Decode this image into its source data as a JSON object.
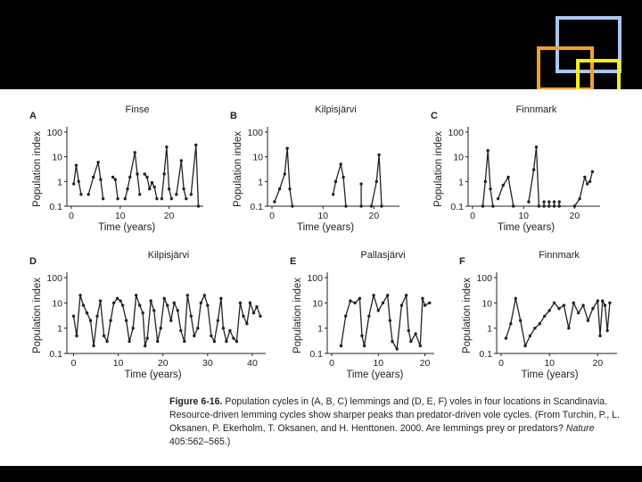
{
  "colors": {
    "slide_bg": "#ffffff",
    "line": "#222222",
    "outer_bg": "#000000"
  },
  "caption": {
    "figure_label": "Figure 6-16.",
    "text": "Population cycles in (A, B, C) lemmings and (D, E, F) voles in four locations in Scandinavia. Resource-driven lemming cycles show sharper peaks than predator-driven vole cycles. (From Turchin, P., L. Oksanen, P. Ekerholm, T. Oksanen, and H. Henttonen. 2000. Are lemmings prey or predators?",
    "journal": "Nature",
    "citation_end": "405:562–565.)"
  },
  "chart_data": [
    {
      "id": "A",
      "type": "line",
      "panel_label": "A",
      "title": "Finse",
      "xlabel": "Time (years)",
      "ylabel": "Population index",
      "yscale": "log",
      "ylim": [
        0.1,
        100
      ],
      "xlim": [
        0,
        27
      ],
      "yticks": [
        "0.1",
        "1",
        "10",
        "100"
      ],
      "xticks": [
        "0",
        "10",
        "20"
      ],
      "segments": [
        [
          [
            0.5,
            0.8
          ],
          [
            1,
            4.5
          ],
          [
            1.5,
            1
          ],
          [
            2,
            0.3
          ]
        ],
        [
          [
            3.5,
            0.3
          ],
          [
            4.5,
            1.5
          ],
          [
            5.5,
            6
          ],
          [
            6,
            1.2
          ],
          [
            6.5,
            0.2
          ]
        ],
        [
          [
            8.5,
            1.5
          ],
          [
            9,
            1.2
          ],
          [
            9.5,
            0.2
          ]
        ],
        [
          [
            11,
            0.2
          ],
          [
            11.5,
            0.5
          ],
          [
            12,
            1.5
          ],
          [
            13,
            15
          ],
          [
            13.5,
            2
          ],
          [
            14,
            0.3
          ]
        ],
        [
          [
            15,
            2
          ],
          [
            15.5,
            1.5
          ],
          [
            16,
            0.5
          ],
          [
            16.5,
            0.9
          ],
          [
            17,
            0.6
          ],
          [
            17.5,
            0.2
          ]
        ],
        [
          [
            18.5,
            0.2
          ],
          [
            19,
            2
          ],
          [
            19.5,
            25
          ],
          [
            20,
            0.5
          ],
          [
            20.5,
            0.2
          ]
        ],
        [
          [
            21.5,
            0.3
          ],
          [
            22.5,
            7
          ],
          [
            23,
            0.5
          ],
          [
            23.5,
            0.2
          ]
        ],
        [
          [
            24.5,
            0.3
          ],
          [
            25.5,
            30
          ],
          [
            26,
            0.1
          ]
        ]
      ]
    },
    {
      "id": "B",
      "type": "line",
      "panel_label": "B",
      "title": "Kilpisjärvi",
      "xlabel": "Time (years)",
      "ylabel": "Population index",
      "yscale": "log",
      "ylim": [
        0.1,
        100
      ],
      "xlim": [
        0,
        25
      ],
      "yticks": [
        "0.1",
        "1",
        "10",
        "100"
      ],
      "xticks": [
        "0",
        "10",
        "20"
      ],
      "segments": [
        [
          [
            0.5,
            0.15
          ],
          [
            1.5,
            0.5
          ],
          [
            2.5,
            2
          ],
          [
            3,
            22
          ],
          [
            3.5,
            0.5
          ],
          [
            4,
            0.1
          ]
        ],
        [
          [
            12,
            0.3
          ],
          [
            12.5,
            1
          ],
          [
            13.5,
            5
          ],
          [
            14,
            1.5
          ],
          [
            14.5,
            0.1
          ]
        ],
        [
          [
            17.5,
            0.1
          ],
          [
            17.5,
            0.8
          ]
        ],
        [
          [
            19.5,
            0.1
          ],
          [
            20.5,
            1
          ],
          [
            21,
            12
          ],
          [
            21.5,
            0.1
          ]
        ]
      ]
    },
    {
      "id": "C",
      "type": "line",
      "panel_label": "C",
      "title": "Finnmark",
      "xlabel": "Time (years)",
      "ylabel": "Population index",
      "yscale": "log",
      "ylim": [
        0.1,
        100
      ],
      "xlim": [
        0,
        25
      ],
      "yticks": [
        "0.1",
        "1",
        "10",
        "100"
      ],
      "xticks": [
        "0",
        "10",
        "20"
      ],
      "segments": [
        [
          [
            2,
            0.1
          ],
          [
            2.5,
            1
          ],
          [
            3,
            18
          ],
          [
            3.5,
            0.5
          ],
          [
            4,
            0.1
          ]
        ],
        [
          [
            5,
            0.2
          ],
          [
            6,
            0.7
          ],
          [
            7,
            1.5
          ],
          [
            8,
            0.1
          ]
        ],
        [
          [
            11,
            0.15
          ],
          [
            12,
            3
          ],
          [
            12.5,
            25
          ],
          [
            13,
            0.1
          ]
        ],
        [
          [
            14,
            0.1
          ],
          [
            14,
            0.15
          ]
        ],
        [
          [
            15,
            0.1
          ],
          [
            15,
            0.15
          ]
        ],
        [
          [
            16,
            0.1
          ],
          [
            16,
            0.15
          ]
        ],
        [
          [
            17,
            0.1
          ],
          [
            17,
            0.15
          ]
        ],
        [
          [
            20,
            0.1
          ],
          [
            21,
            0.2
          ],
          [
            22,
            1.5
          ],
          [
            22.5,
            0.8
          ],
          [
            23,
            1
          ],
          [
            23.5,
            2.5
          ]
        ]
      ]
    },
    {
      "id": "D",
      "type": "line",
      "panel_label": "D",
      "title": "Kilpisjärvi",
      "xlabel": "Time (years)",
      "ylabel": "Population index",
      "yscale": "log",
      "ylim": [
        0.1,
        100
      ],
      "xlim": [
        -0.5,
        43
      ],
      "yticks": [
        "0.1",
        "1",
        "10",
        "100"
      ],
      "xticks": [
        "0",
        "10",
        "20",
        "30",
        "40"
      ],
      "segments": [
        [
          [
            0,
            3
          ],
          [
            0.7,
            0.5
          ],
          [
            1.5,
            20
          ],
          [
            2.2,
            8
          ],
          [
            3,
            4
          ],
          [
            3.8,
            2
          ],
          [
            4.5,
            0.2
          ],
          [
            5.3,
            3
          ],
          [
            6,
            12
          ],
          [
            6.8,
            0.5
          ],
          [
            7.5,
            0.3
          ],
          [
            8.3,
            2
          ],
          [
            9,
            10
          ],
          [
            9.8,
            15
          ],
          [
            10.5,
            12
          ],
          [
            11,
            8
          ],
          [
            11.8,
            2
          ],
          [
            12.5,
            0.3
          ],
          [
            13.3,
            1
          ],
          [
            14,
            20
          ],
          [
            14.8,
            8
          ],
          [
            15.5,
            4
          ],
          [
            16,
            0.2
          ],
          [
            16.5,
            0.4
          ],
          [
            17.3,
            12
          ],
          [
            18,
            5
          ],
          [
            18.8,
            0.3
          ],
          [
            19.5,
            1
          ],
          [
            20.3,
            15
          ],
          [
            21,
            8
          ],
          [
            21.8,
            2
          ],
          [
            22.5,
            10
          ],
          [
            23.3,
            5
          ],
          [
            24,
            0.8
          ],
          [
            24.8,
            0.3
          ],
          [
            25.5,
            20
          ],
          [
            26.3,
            3
          ],
          [
            27,
            0.5
          ],
          [
            27.8,
            1
          ],
          [
            28.5,
            10
          ],
          [
            29.3,
            20
          ],
          [
            30,
            8
          ],
          [
            30.8,
            0.5
          ],
          [
            31.5,
            0.3
          ],
          [
            32.3,
            2
          ],
          [
            33,
            15
          ],
          [
            33.5,
            1
          ],
          [
            34.2,
            0.3
          ],
          [
            35,
            0.8
          ],
          [
            35.8,
            0.4
          ],
          [
            36.5,
            0.3
          ],
          [
            37.3,
            10
          ],
          [
            38,
            3
          ],
          [
            38.8,
            1.5
          ],
          [
            39.5,
            10
          ],
          [
            40.3,
            4
          ],
          [
            41,
            7
          ],
          [
            41.8,
            3
          ]
        ]
      ]
    },
    {
      "id": "E",
      "type": "line",
      "panel_label": "E",
      "title": "Pallasjärvi",
      "xlabel": "Time (years)",
      "ylabel": "Population index",
      "yscale": "log",
      "ylim": [
        0.1,
        100
      ],
      "xlim": [
        0,
        22
      ],
      "yticks": [
        "0.1",
        "1",
        "10",
        "100"
      ],
      "xticks": [
        "0",
        "10",
        "20"
      ],
      "segments": [
        [
          [
            2,
            0.2
          ],
          [
            3,
            3
          ],
          [
            4,
            12
          ],
          [
            5,
            10
          ],
          [
            6,
            15
          ],
          [
            6.5,
            0.5
          ],
          [
            7,
            0.2
          ],
          [
            8,
            3
          ],
          [
            9,
            20
          ],
          [
            10,
            5
          ],
          [
            11,
            10
          ],
          [
            12,
            20
          ],
          [
            12.5,
            2
          ],
          [
            13,
            0.3
          ],
          [
            14,
            0.15
          ],
          [
            15,
            8
          ],
          [
            16,
            20
          ],
          [
            16.5,
            0.8
          ],
          [
            17,
            0.3
          ],
          [
            18,
            0.6
          ],
          [
            19,
            0.2
          ],
          [
            19.5,
            15
          ],
          [
            20,
            8
          ],
          [
            21,
            10
          ]
        ]
      ]
    },
    {
      "id": "F",
      "type": "line",
      "panel_label": "F",
      "title": "Finnmark",
      "xlabel": "Time (years)",
      "ylabel": "Population index",
      "yscale": "log",
      "ylim": [
        0.1,
        100
      ],
      "xlim": [
        0,
        24
      ],
      "yticks": [
        "0.1",
        "1",
        "10",
        "100"
      ],
      "xticks": [
        "0",
        "10",
        "20"
      ],
      "segments": [
        [
          [
            1,
            0.4
          ],
          [
            2,
            1.5
          ],
          [
            3,
            15
          ],
          [
            4,
            2
          ],
          [
            5,
            0.2
          ],
          [
            6,
            0.5
          ],
          [
            7,
            1
          ],
          [
            8,
            1.5
          ],
          [
            9,
            3
          ],
          [
            10,
            5
          ],
          [
            11,
            10
          ],
          [
            12,
            6
          ],
          [
            13,
            8
          ],
          [
            14,
            1
          ],
          [
            15,
            10
          ],
          [
            16,
            4
          ],
          [
            17,
            8
          ],
          [
            18,
            2
          ],
          [
            19,
            6
          ],
          [
            20,
            12
          ],
          [
            20.5,
            0.5
          ],
          [
            21,
            12
          ],
          [
            21.5,
            8
          ],
          [
            22,
            0.8
          ],
          [
            22.5,
            10
          ]
        ]
      ]
    }
  ]
}
